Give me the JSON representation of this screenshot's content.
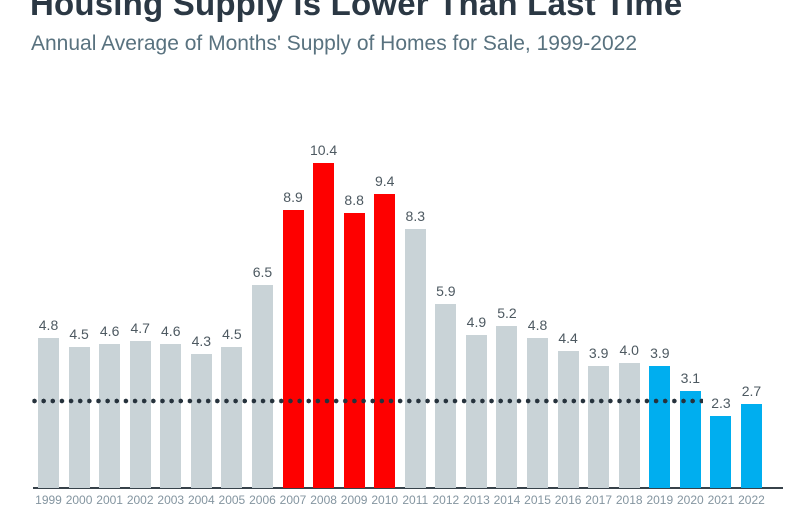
{
  "header": {
    "title": "Housing Supply is Lower Than Last Time",
    "subtitle": "Annual Average of Months' Supply of Homes for Sale, 1999-2022"
  },
  "chart_data": {
    "type": "bar",
    "title": "Housing Supply is Lower Than Last Time",
    "subtitle": "Annual Average of Months' Supply of Homes for Sale, 1999-2022",
    "xlabel": "",
    "ylabel": "",
    "categories": [
      "1999",
      "2000",
      "2001",
      "2002",
      "2003",
      "2004",
      "2005",
      "2006",
      "2007",
      "2008",
      "2009",
      "2010",
      "2011",
      "2012",
      "2013",
      "2014",
      "2015",
      "2016",
      "2017",
      "2018",
      "2019",
      "2020",
      "2021",
      "2022"
    ],
    "values": [
      4.8,
      4.5,
      4.6,
      4.7,
      4.6,
      4.3,
      4.5,
      6.5,
      8.9,
      10.4,
      8.8,
      9.4,
      8.3,
      5.9,
      4.9,
      5.2,
      4.8,
      4.4,
      3.9,
      4.0,
      3.9,
      3.1,
      2.3,
      2.7
    ],
    "bar_colors": [
      "gray",
      "gray",
      "gray",
      "gray",
      "gray",
      "gray",
      "gray",
      "gray",
      "red",
      "red",
      "red",
      "red",
      "gray",
      "gray",
      "gray",
      "gray",
      "gray",
      "gray",
      "gray",
      "gray",
      "blue",
      "blue",
      "blue",
      "blue"
    ],
    "palette": {
      "gray": "#C9D3D7",
      "red": "#FE0000",
      "blue": "#00AEEF"
    },
    "value_labels": true,
    "grid": false,
    "legend": "none",
    "ylim": [
      0,
      11
    ],
    "reference_line": {
      "value": 2.8,
      "style": "dotted",
      "color": "#26323C"
    }
  },
  "text_colors": {
    "title": "#2B3844",
    "subtitle": "#59727F",
    "value_label": "#4D5961",
    "tick_label": "#8495A0",
    "axis": "#37424A"
  }
}
